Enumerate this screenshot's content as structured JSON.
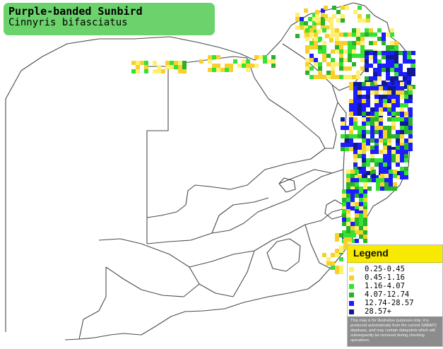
{
  "title": {
    "common_name": "Purple-banded Sunbird",
    "scientific_name": "Cinnyris bifasciatus"
  },
  "legend": {
    "heading": "Legend",
    "items": [
      {
        "label": "0.25-0.45",
        "color": "#fff070"
      },
      {
        "label": "0.45-1.16",
        "color": "#f7d02c"
      },
      {
        "label": "1.16-4.07",
        "color": "#33e233"
      },
      {
        "label": "4.07-12.74",
        "color": "#27b227"
      },
      {
        "label": "12.74-28.57",
        "color": "#1c1cff"
      },
      {
        "label": "28.57+",
        "color": "#0f1a90"
      }
    ],
    "disclaimer": "This map is for illustrative purposes only; it is produced automatically from the current SABAP2 database, and may contain datapoints which will subsequently be removed during checking operations."
  },
  "map": {
    "region": "Southern Africa",
    "border_color": "#4a4a4a"
  }
}
